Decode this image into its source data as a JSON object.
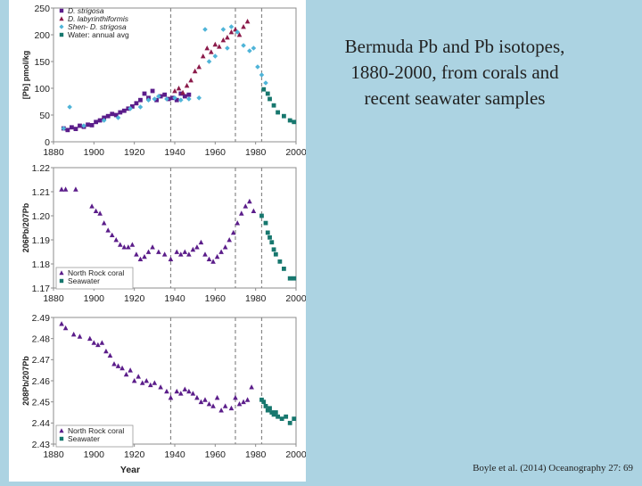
{
  "slide": {
    "title": "Bermuda Pb and Pb isotopes, 1880-2000, from corals and recent seawater samples",
    "citation": "Boyle et al. (2014) Oceanography 27: 69"
  },
  "colors": {
    "background": "#acd3e2",
    "purple": "#5b1d8a",
    "maroon": "#8b1a4a",
    "cyan": "#4fb4d8",
    "teal": "#17776e",
    "dashed": "#888888"
  },
  "chart_data": [
    {
      "type": "scatter",
      "xlim": [
        1880,
        2000
      ],
      "ylim": [
        0,
        250
      ],
      "xticks": [
        "1880",
        "1900",
        "1920",
        "1940",
        "1960",
        "1980",
        "2000"
      ],
      "yticks": [
        "0",
        "50",
        "100",
        "150",
        "200",
        "250"
      ],
      "ylabel": "[Pb] pmol/kg",
      "xlabel": "",
      "vlines": [
        1938,
        1970,
        1983
      ],
      "legend": "top-left",
      "series": [
        {
          "name": "D. strigosa",
          "marker": "square",
          "color": "#5b1d8a",
          "x": [
            1885,
            1887,
            1889,
            1891,
            1893,
            1895,
            1897,
            1899,
            1901,
            1903,
            1905,
            1907,
            1909,
            1911,
            1913,
            1915,
            1917,
            1919,
            1921,
            1923,
            1925,
            1927,
            1929,
            1931,
            1933,
            1935,
            1937,
            1939,
            1941,
            1943,
            1945,
            1947
          ],
          "y": [
            25,
            22,
            27,
            24,
            30,
            28,
            32,
            31,
            37,
            40,
            45,
            48,
            52,
            50,
            55,
            58,
            62,
            66,
            72,
            78,
            90,
            82,
            95,
            78,
            85,
            88,
            80,
            82,
            78,
            90,
            85,
            88
          ]
        },
        {
          "name": "D. labyrinthiformis",
          "marker": "triangle",
          "color": "#8b1a4a",
          "x": [
            1940,
            1942,
            1944,
            1946,
            1948,
            1950,
            1952,
            1954,
            1956,
            1958,
            1960,
            1962,
            1964,
            1966,
            1968,
            1970,
            1972,
            1974,
            1976
          ],
          "y": [
            95,
            100,
            92,
            105,
            115,
            132,
            140,
            160,
            175,
            168,
            182,
            178,
            190,
            195,
            205,
            210,
            200,
            215,
            225
          ]
        },
        {
          "name": "Shen- D. strigosa",
          "marker": "diamond",
          "color": "#4fb4d8",
          "x": [
            1885,
            1888,
            1895,
            1905,
            1912,
            1918,
            1923,
            1927,
            1930,
            1932,
            1936,
            1940,
            1943,
            1947,
            1952,
            1955,
            1957,
            1960,
            1964,
            1966,
            1968,
            1971,
            1974,
            1977,
            1979,
            1981,
            1983,
            1985
          ],
          "y": [
            25,
            65,
            30,
            40,
            45,
            62,
            65,
            78,
            80,
            85,
            80,
            82,
            78,
            80,
            82,
            210,
            150,
            160,
            210,
            175,
            215,
            205,
            180,
            170,
            175,
            140,
            125,
            110
          ]
        },
        {
          "name": "Water: annual avg",
          "marker": "square",
          "color": "#17776e",
          "x": [
            1984,
            1986,
            1987,
            1989,
            1991,
            1994,
            1997,
            1999
          ],
          "y": [
            98,
            90,
            80,
            68,
            55,
            48,
            40,
            37
          ]
        }
      ]
    },
    {
      "type": "scatter",
      "xlim": [
        1880,
        2000
      ],
      "ylim": [
        1.17,
        1.22
      ],
      "xticks": [
        "1880",
        "1900",
        "1920",
        "1940",
        "1960",
        "1980",
        "2000"
      ],
      "yticks": [
        "1.17",
        "1.18",
        "1.19",
        "1.20",
        "1.21",
        "1.22"
      ],
      "ylabel": "206Pb/207Pb",
      "xlabel": "",
      "vlines": [
        1938,
        1970,
        1983
      ],
      "legend": "bottom-left",
      "series": [
        {
          "name": "North Rock coral",
          "marker": "triangle",
          "color": "#5b1d8a",
          "x": [
            1884,
            1886,
            1891,
            1899,
            1901,
            1903,
            1905,
            1907,
            1909,
            1911,
            1913,
            1915,
            1917,
            1919,
            1921,
            1923,
            1925,
            1927,
            1929,
            1932,
            1935,
            1938,
            1941,
            1943,
            1945,
            1947,
            1949,
            1951,
            1953,
            1955,
            1957,
            1959,
            1961,
            1963,
            1965,
            1967,
            1969,
            1971,
            1973,
            1975,
            1977,
            1979
          ],
          "y": [
            1.211,
            1.211,
            1.211,
            1.204,
            1.202,
            1.201,
            1.197,
            1.194,
            1.192,
            1.19,
            1.188,
            1.187,
            1.187,
            1.188,
            1.184,
            1.182,
            1.183,
            1.185,
            1.187,
            1.185,
            1.184,
            1.182,
            1.185,
            1.184,
            1.185,
            1.184,
            1.186,
            1.187,
            1.189,
            1.184,
            1.182,
            1.181,
            1.183,
            1.185,
            1.187,
            1.19,
            1.193,
            1.197,
            1.201,
            1.204,
            1.206,
            1.202
          ]
        },
        {
          "name": "Seawater",
          "marker": "square",
          "color": "#17776e",
          "x": [
            1983,
            1985,
            1986,
            1987,
            1988,
            1989,
            1990,
            1992,
            1994,
            1997,
            1999
          ],
          "y": [
            1.2,
            1.197,
            1.193,
            1.191,
            1.189,
            1.186,
            1.184,
            1.181,
            1.178,
            1.174,
            1.174
          ]
        }
      ]
    },
    {
      "type": "scatter",
      "xlim": [
        1880,
        2000
      ],
      "ylim": [
        2.43,
        2.49
      ],
      "xticks": [
        "1880",
        "1900",
        "1920",
        "1940",
        "1960",
        "1980",
        "2000"
      ],
      "yticks": [
        "2.43",
        "2.44",
        "2.45",
        "2.46",
        "2.47",
        "2.48",
        "2.49"
      ],
      "ylabel": "208Pb/207Pb",
      "xlabel": "Year",
      "vlines": [
        1938,
        1970,
        1983
      ],
      "legend": "bottom-left",
      "series": [
        {
          "name": "North Rock coral",
          "marker": "triangle",
          "color": "#5b1d8a",
          "x": [
            1884,
            1886,
            1890,
            1893,
            1898,
            1900,
            1902,
            1904,
            1906,
            1908,
            1910,
            1912,
            1914,
            1916,
            1918,
            1920,
            1922,
            1924,
            1926,
            1928,
            1930,
            1933,
            1936,
            1938,
            1941,
            1943,
            1945,
            1947,
            1949,
            1951,
            1953,
            1955,
            1957,
            1959,
            1961,
            1963,
            1965,
            1968,
            1970,
            1972,
            1974,
            1976,
            1978
          ],
          "y": [
            2.487,
            2.485,
            2.482,
            2.481,
            2.48,
            2.478,
            2.477,
            2.478,
            2.474,
            2.472,
            2.468,
            2.467,
            2.466,
            2.463,
            2.465,
            2.46,
            2.462,
            2.459,
            2.46,
            2.458,
            2.459,
            2.457,
            2.455,
            2.452,
            2.455,
            2.454,
            2.456,
            2.455,
            2.454,
            2.452,
            2.45,
            2.451,
            2.449,
            2.448,
            2.452,
            2.446,
            2.448,
            2.447,
            2.452,
            2.449,
            2.45,
            2.451,
            2.457
          ]
        },
        {
          "name": "Seawater",
          "marker": "square",
          "color": "#17776e",
          "x": [
            1983,
            1984,
            1985,
            1986,
            1987,
            1988,
            1989,
            1990,
            1991,
            1993,
            1995,
            1997,
            1999
          ],
          "y": [
            2.451,
            2.45,
            2.448,
            2.446,
            2.447,
            2.445,
            2.444,
            2.445,
            2.443,
            2.442,
            2.443,
            2.44,
            2.442
          ]
        }
      ]
    }
  ]
}
